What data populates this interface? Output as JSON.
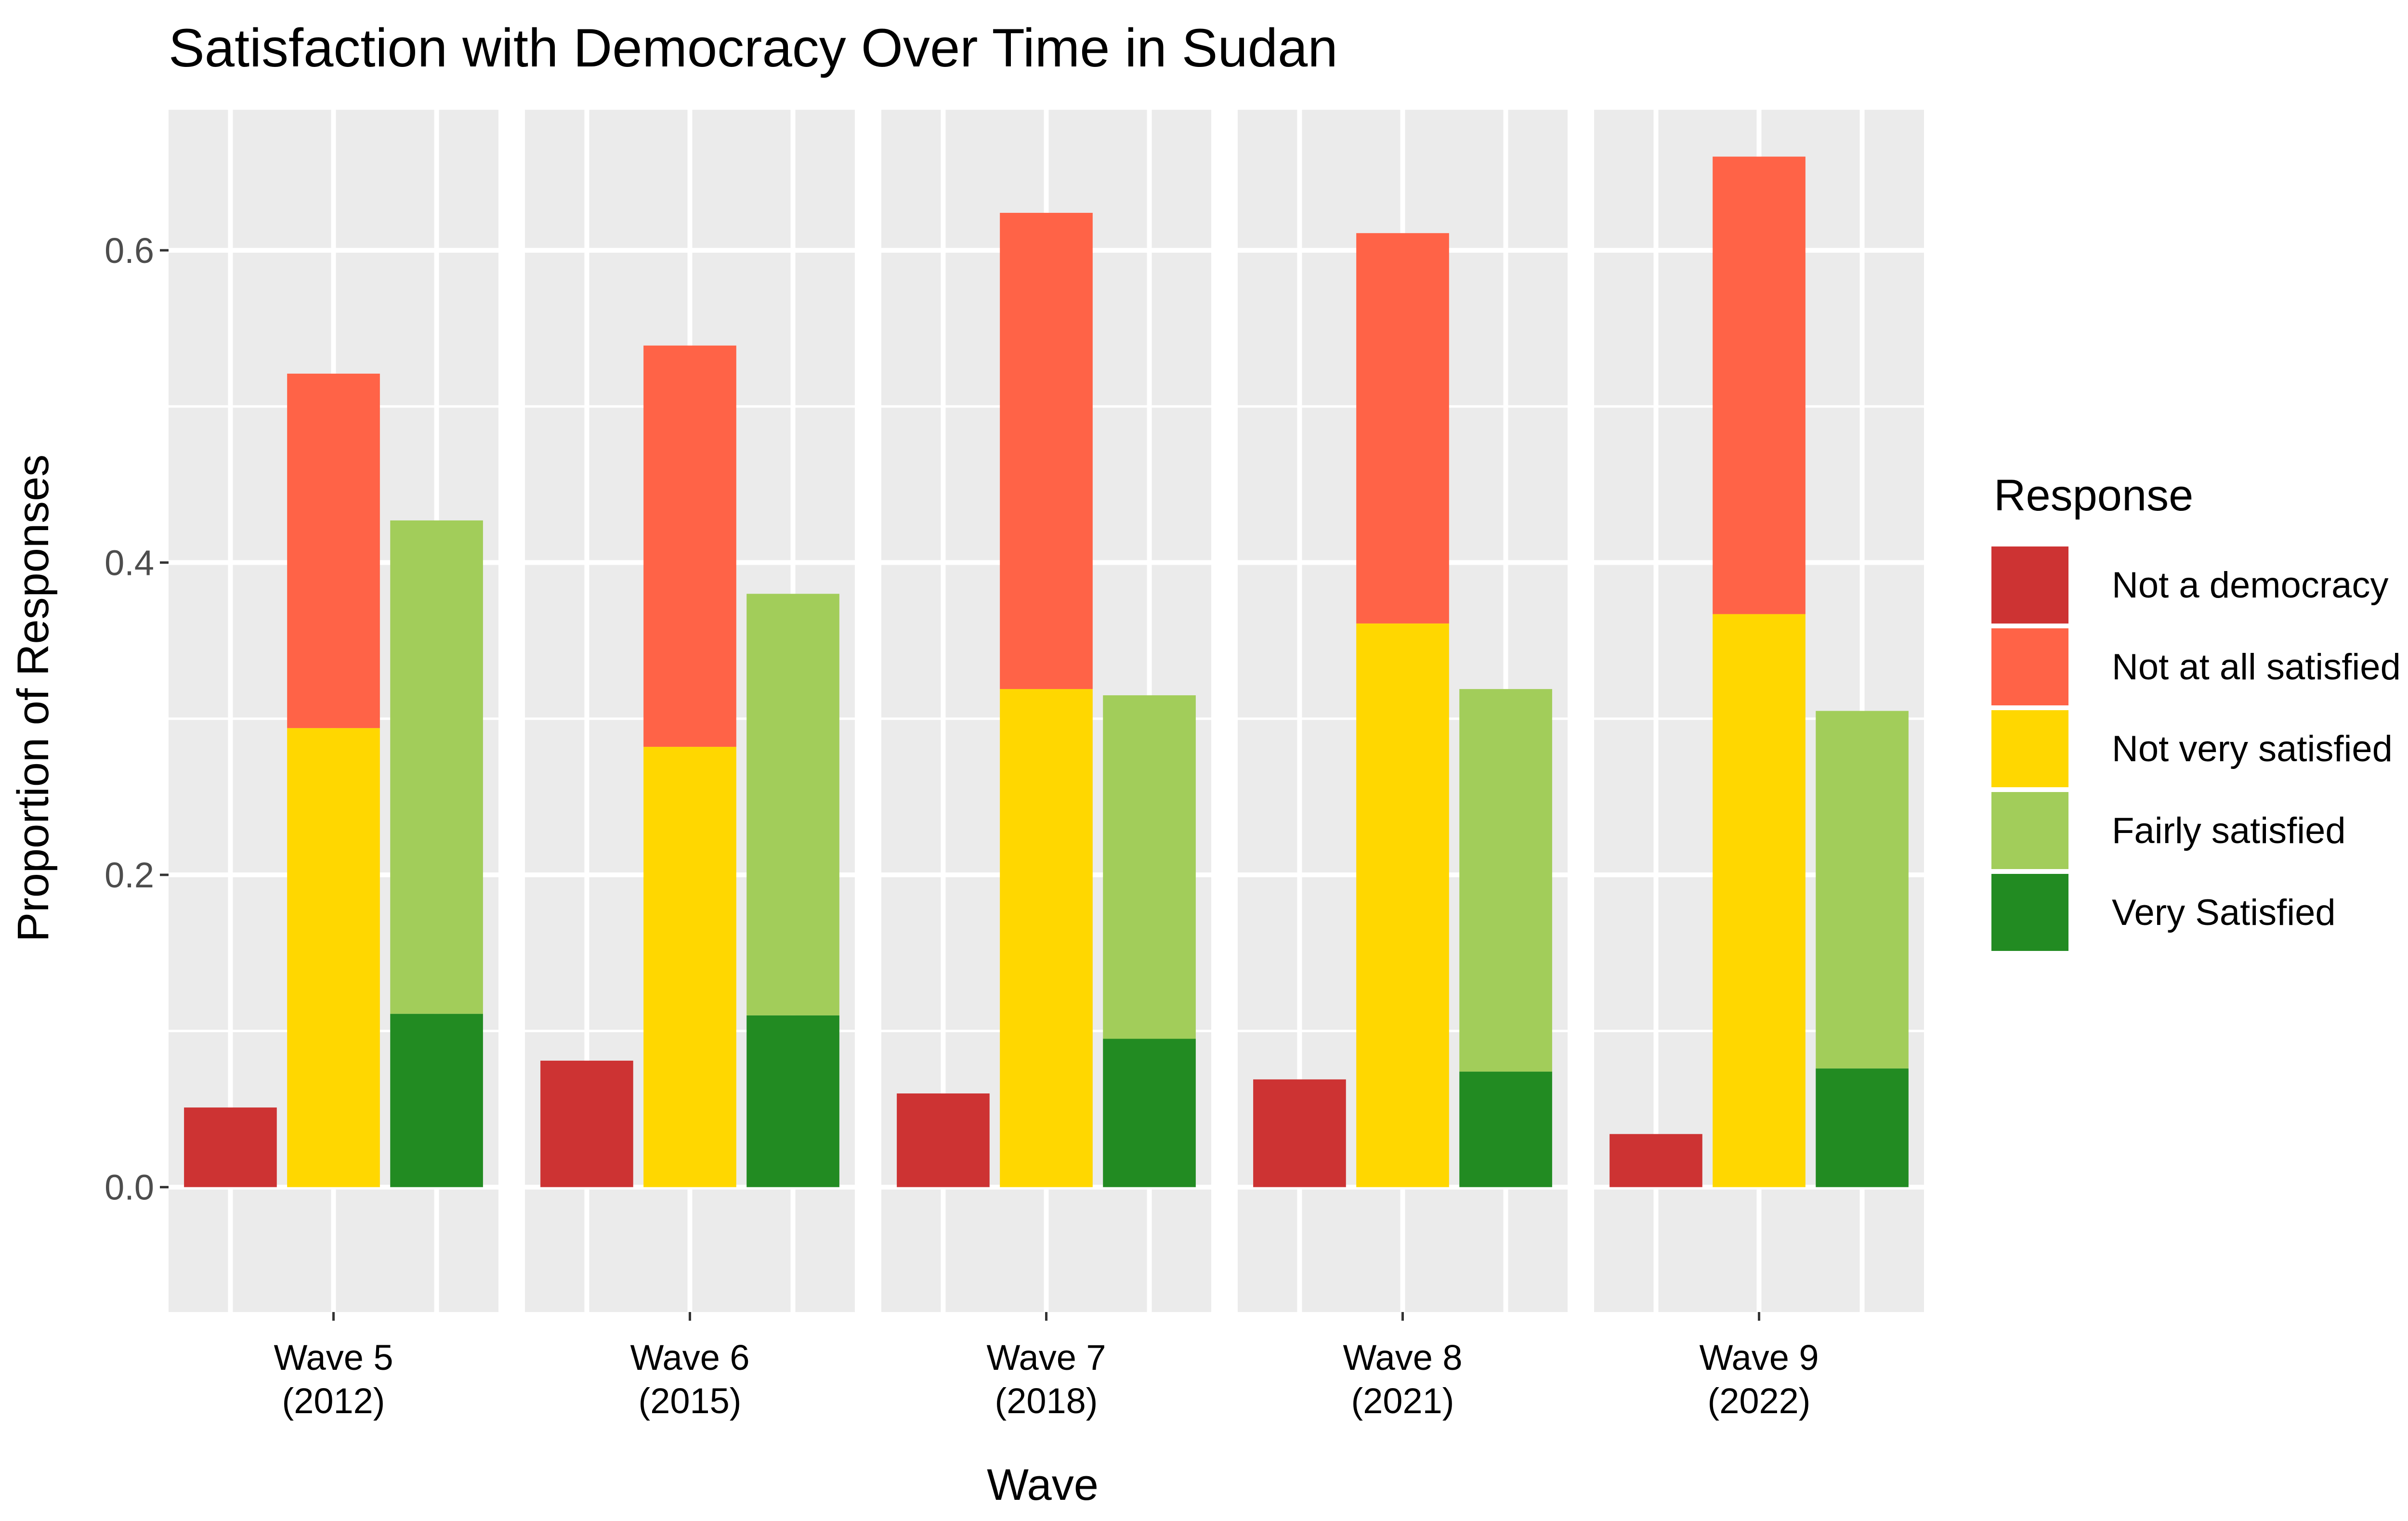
{
  "chart_data": {
    "type": "bar",
    "title": "Satisfaction with Democracy Over Time in Sudan",
    "xlabel": "Wave",
    "ylabel": "Proportion of Responses",
    "ylim": [
      -0.08,
      0.69
    ],
    "yticks": [
      "0.0",
      "0.2",
      "0.4",
      "0.6"
    ],
    "ytick_values": [
      0.0,
      0.2,
      0.4,
      0.6
    ],
    "grid": true,
    "legend_position": "right",
    "legend_title": "Response",
    "facets": [
      {
        "label_line1": "Wave 5",
        "label_line2": "(2012)"
      },
      {
        "label_line1": "Wave 6",
        "label_line2": "(2015)"
      },
      {
        "label_line1": "Wave 7",
        "label_line2": "(2018)"
      },
      {
        "label_line1": "Wave 8",
        "label_line2": "(2021)"
      },
      {
        "label_line1": "Wave 9",
        "label_line2": "(2022)"
      }
    ],
    "series": [
      {
        "name": "Not a democracy",
        "color": "#cd3333",
        "values": [
          0.051,
          0.081,
          0.06,
          0.069,
          0.034
        ]
      },
      {
        "name": "Not at all satisfied",
        "color": "#ff6347",
        "values": [
          0.227,
          0.257,
          0.305,
          0.25,
          0.293
        ]
      },
      {
        "name": "Not very satisfied",
        "color": "#ffd700",
        "values": [
          0.294,
          0.282,
          0.319,
          0.361,
          0.367
        ]
      },
      {
        "name": "Fairly satisfied",
        "color": "#a2cd5a",
        "values": [
          0.316,
          0.27,
          0.22,
          0.245,
          0.229
        ]
      },
      {
        "name": "Very Satisfied",
        "color": "#228b22",
        "values": [
          0.111,
          0.11,
          0.095,
          0.074,
          0.076
        ]
      }
    ],
    "stacking": [
      {
        "position": 0,
        "series": [
          "Not a democracy"
        ]
      },
      {
        "position": 1,
        "series": [
          "Not very satisfied",
          "Not at all satisfied"
        ]
      },
      {
        "position": 2,
        "series": [
          "Very Satisfied",
          "Fairly satisfied"
        ]
      }
    ]
  }
}
